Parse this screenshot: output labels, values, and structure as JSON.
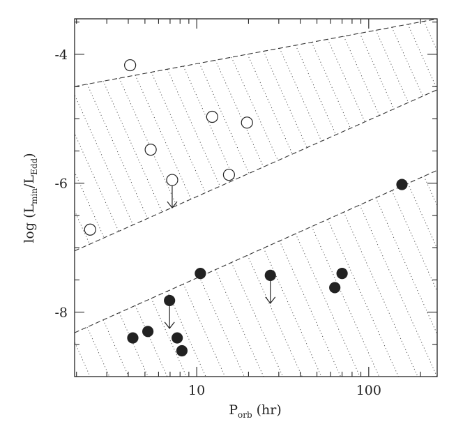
{
  "chart_data": {
    "type": "scatter",
    "title": "",
    "xlabel": {
      "main": "P",
      "sub": "orb",
      "unit": "(hr)"
    },
    "ylabel": {
      "main": "log (L",
      "sub1": "min",
      "mid": "/L",
      "sub2": "Edd",
      "end": ")"
    },
    "x_scale": "log",
    "xlim": [
      1.95,
      250
    ],
    "ylim": [
      -9.0,
      -3.45
    ],
    "x_ticks": [
      10,
      100
    ],
    "x_tick_labels": [
      "10",
      "100"
    ],
    "y_ticks": [
      -4,
      -6,
      -8
    ],
    "y_tick_labels": [
      "-4",
      "-6",
      "-8"
    ],
    "grid": false,
    "legend": "none",
    "bands": [
      {
        "kind": "upper",
        "lower_edge": [
          [
            1.95,
            -7.05
          ],
          [
            250,
            -4.55
          ]
        ],
        "upper_edge": [
          [
            1.95,
            -4.5
          ],
          [
            250,
            -3.45
          ]
        ]
      },
      {
        "kind": "lower",
        "lower_edge": [
          [
            1.95,
            -9.0
          ],
          [
            250,
            -9.0
          ]
        ],
        "upper_edge": [
          [
            1.95,
            -8.32
          ],
          [
            250,
            -5.8
          ]
        ]
      }
    ],
    "series": [
      {
        "marker": "open-circle",
        "color": "#222222",
        "points": [
          {
            "x": 2.4,
            "y": -6.72
          },
          {
            "x": 4.1,
            "y": -4.17
          },
          {
            "x": 5.4,
            "y": -5.48
          },
          {
            "x": 7.2,
            "y": -5.95,
            "upper_limit": true
          },
          {
            "x": 12.3,
            "y": -4.97
          },
          {
            "x": 15.4,
            "y": -5.87
          },
          {
            "x": 19.6,
            "y": -5.06
          }
        ]
      },
      {
        "marker": "filled-circle",
        "color": "#222222",
        "points": [
          {
            "x": 4.25,
            "y": -8.4
          },
          {
            "x": 5.2,
            "y": -8.3
          },
          {
            "x": 6.95,
            "y": -7.82,
            "upper_limit": true
          },
          {
            "x": 7.7,
            "y": -8.4
          },
          {
            "x": 8.2,
            "y": -8.6
          },
          {
            "x": 10.5,
            "y": -7.4
          },
          {
            "x": 26.8,
            "y": -7.43,
            "upper_limit": true
          },
          {
            "x": 63.5,
            "y": -7.62
          },
          {
            "x": 70.0,
            "y": -7.4
          },
          {
            "x": 156.0,
            "y": -6.02
          }
        ]
      }
    ]
  }
}
